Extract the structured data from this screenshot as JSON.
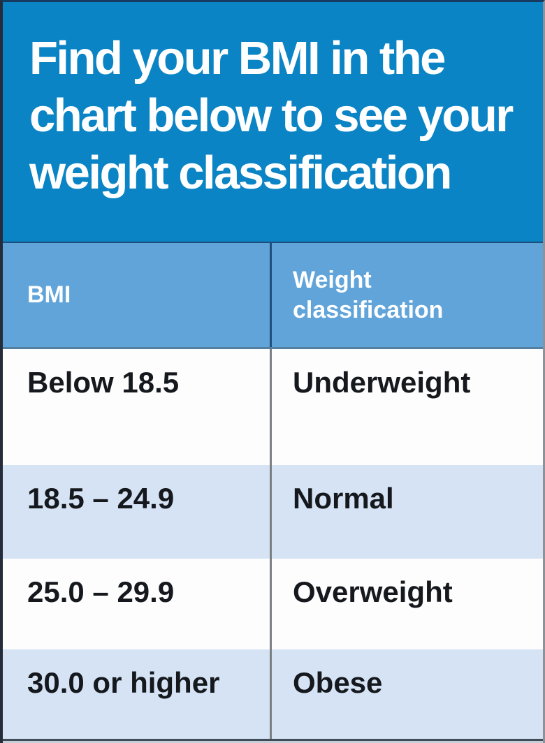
{
  "header": {
    "title": "Find your BMI in the\nchart below to see your\nweight classification"
  },
  "table": {
    "columns": [
      "BMI",
      "Weight classification"
    ],
    "rows": [
      {
        "bmi": "Below 18.5",
        "classification": "Underweight"
      },
      {
        "bmi": "18.5 – 24.9",
        "classification": "Normal"
      },
      {
        "bmi": "25.0 – 29.9",
        "classification": "Overweight"
      },
      {
        "bmi": "30.0 or higher",
        "classification": "Obese"
      }
    ]
  },
  "chart_data": {
    "type": "table",
    "title": "Find your BMI in the chart below to see your weight classification",
    "columns": [
      "BMI",
      "Weight classification"
    ],
    "rows": [
      [
        "Below 18.5",
        "Underweight"
      ],
      [
        "18.5 – 24.9",
        "Normal"
      ],
      [
        "25.0 – 29.9",
        "Overweight"
      ],
      [
        "30.0 or higher",
        "Obese"
      ]
    ],
    "layout_hints": {
      "zebra_striping": true,
      "header_position": "top"
    }
  },
  "colors": {
    "hero_bg": "#0a84c5",
    "table_header_bg": "#61a4d9",
    "row_alt_bg": "#d5e3f5",
    "row_bg": "#fdfdfe",
    "text_light": "#ffffff",
    "text_dark": "#15181c",
    "divider_gray": "#7c8084",
    "divider_navy": "#1f4e7a"
  }
}
